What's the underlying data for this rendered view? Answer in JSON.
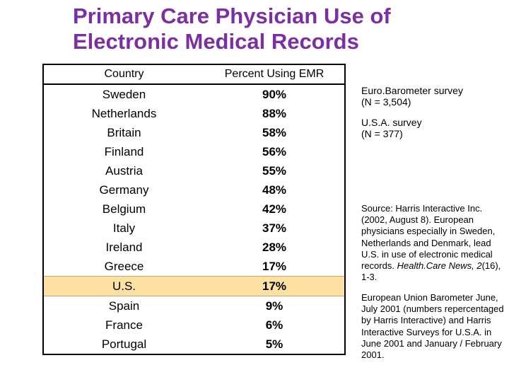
{
  "title": {
    "line1": "Primary Care Physician Use of",
    "line2": "Electronic Medical Records"
  },
  "table": {
    "headers": [
      "Country",
      "Percent Using EMR"
    ],
    "rows": [
      {
        "country": "Sweden",
        "percent": "90%"
      },
      {
        "country": "Netherlands",
        "percent": "88%"
      },
      {
        "country": "Britain",
        "percent": "58%"
      },
      {
        "country": "Finland",
        "percent": "56%"
      },
      {
        "country": "Austria",
        "percent": "55%"
      },
      {
        "country": "Germany",
        "percent": "48%"
      },
      {
        "country": "Belgium",
        "percent": "42%"
      },
      {
        "country": "Italy",
        "percent": "37%"
      },
      {
        "country": "Ireland",
        "percent": "28%"
      },
      {
        "country": "Greece",
        "percent": "17%"
      },
      {
        "country": "U.S.",
        "percent": "17%",
        "highlight": true
      },
      {
        "country": "Spain",
        "percent": "9%"
      },
      {
        "country": "France",
        "percent": "6%"
      },
      {
        "country": "Portugal",
        "percent": "5%"
      }
    ]
  },
  "notes": {
    "eurobarometer_line1": "Euro.Barometer survey",
    "eurobarometer_line2": "(N = 3,504)",
    "usa_line1": "U.S.A. survey",
    "usa_line2": "(N = 377)"
  },
  "source": {
    "text_before_journal": "Source:  Harris Interactive Inc. (2002, August 8).  European physicians especially in Sweden, Netherlands and Denmark, lead U.S. in use of electronic medical records.",
    "journal": "Health.Care News,",
    "volume": "2",
    "issue_pages": "(16), 1-3."
  },
  "footnote": "European Union Barometer June, July 2001 (numbers repercentaged by Harris Interactive) and Harris Interactive Surveys for U.S.A. in June 2001 and January / February 2001.",
  "colors": {
    "title": "#7b2fa3",
    "highlight_row": "#fde1a3"
  }
}
